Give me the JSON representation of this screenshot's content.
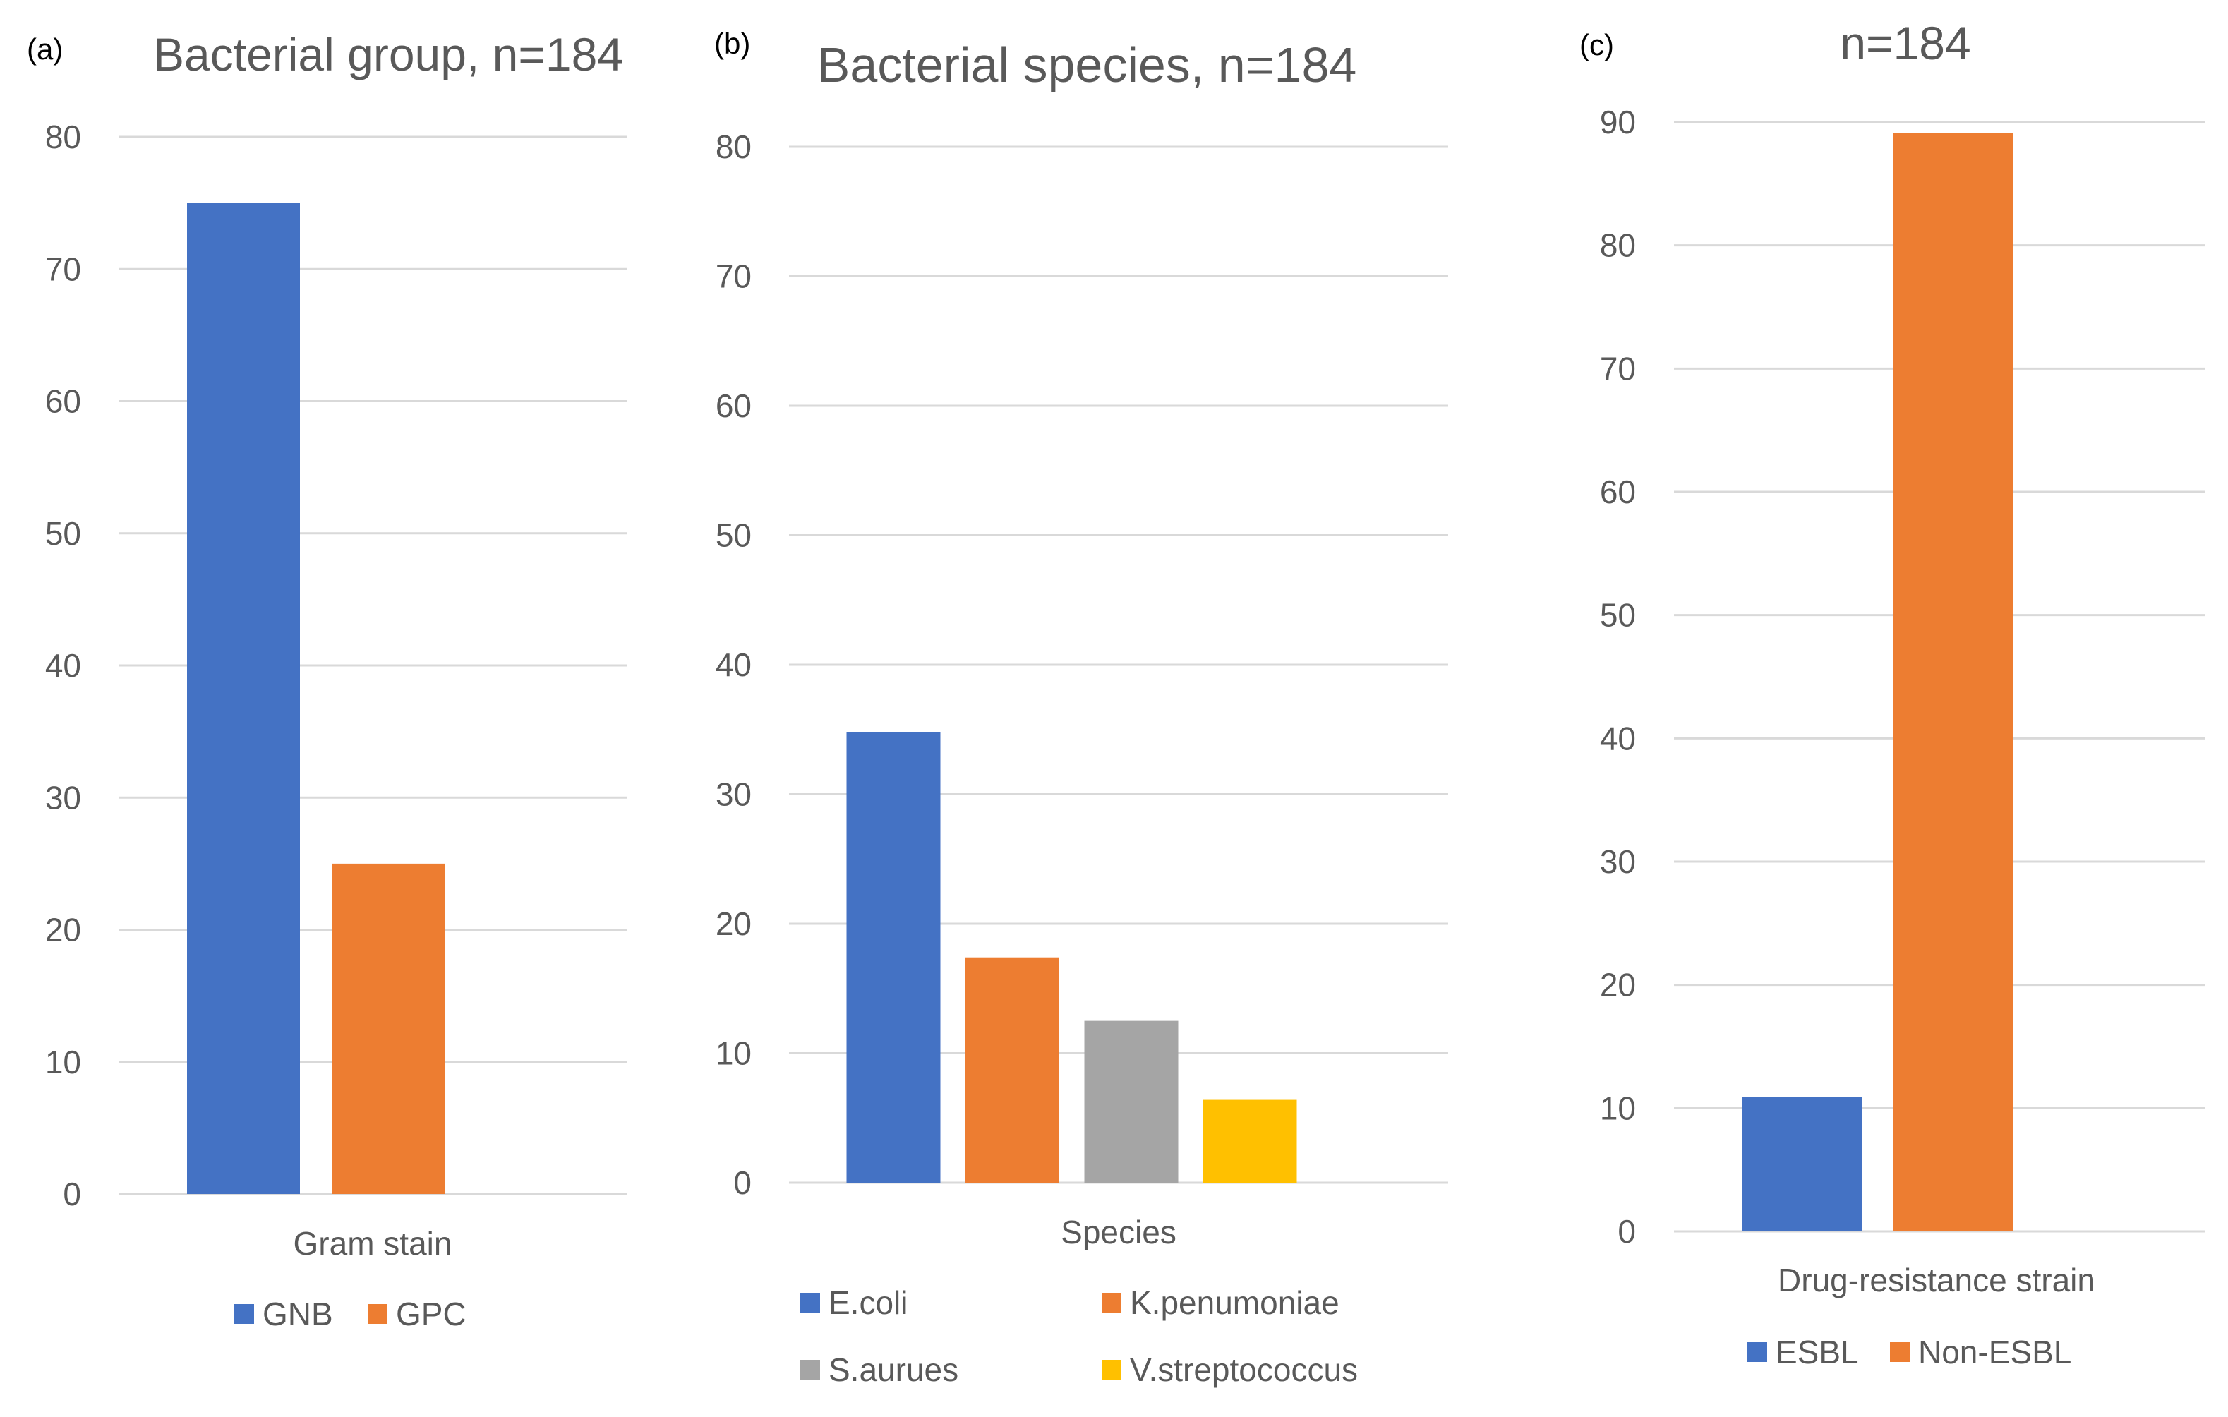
{
  "chart_data": [
    {
      "panel_label": "(a)",
      "type": "bar",
      "title": "Bacterial group, n=184",
      "xlabel": "Gram stain",
      "ylabel": "",
      "ylim": [
        0,
        80
      ],
      "yticks": [
        "0",
        "10",
        "20",
        "30",
        "40",
        "50",
        "60",
        "70",
        "80"
      ],
      "grid": true,
      "legend_position": "bottom",
      "series": [
        {
          "name": "GNB",
          "values": [
            75
          ],
          "color": "#4472C4"
        },
        {
          "name": "GPC",
          "values": [
            25
          ],
          "color": "#ED7D31"
        }
      ]
    },
    {
      "panel_label": "(b)",
      "type": "bar",
      "title": "Bacterial species, n=184",
      "xlabel": "Species",
      "ylabel": "",
      "ylim": [
        0,
        80
      ],
      "yticks": [
        "0",
        "10",
        "20",
        "30",
        "40",
        "50",
        "60",
        "70",
        "80"
      ],
      "grid": true,
      "legend_position": "bottom",
      "series": [
        {
          "name": "E.coli",
          "values": [
            34.8
          ],
          "color": "#4472C4"
        },
        {
          "name": "K.penumoniae",
          "values": [
            17.4
          ],
          "color": "#ED7D31"
        },
        {
          "name": "S.aurues",
          "values": [
            12.5
          ],
          "color": "#A5A5A5"
        },
        {
          "name": "V.streptococcus",
          "values": [
            6.4
          ],
          "color": "#FFC000"
        }
      ]
    },
    {
      "panel_label": "(c)",
      "type": "bar",
      "title": "n=184",
      "xlabel": "Drug-resistance strain",
      "ylabel": "",
      "ylim": [
        0,
        90
      ],
      "yticks": [
        "0",
        "10",
        "20",
        "30",
        "40",
        "50",
        "60",
        "70",
        "80",
        "90"
      ],
      "grid": true,
      "legend_position": "bottom",
      "series": [
        {
          "name": "ESBL",
          "values": [
            10.9
          ],
          "color": "#4472C4"
        },
        {
          "name": "Non-ESBL",
          "values": [
            89.1
          ],
          "color": "#ED7D31"
        }
      ]
    }
  ]
}
